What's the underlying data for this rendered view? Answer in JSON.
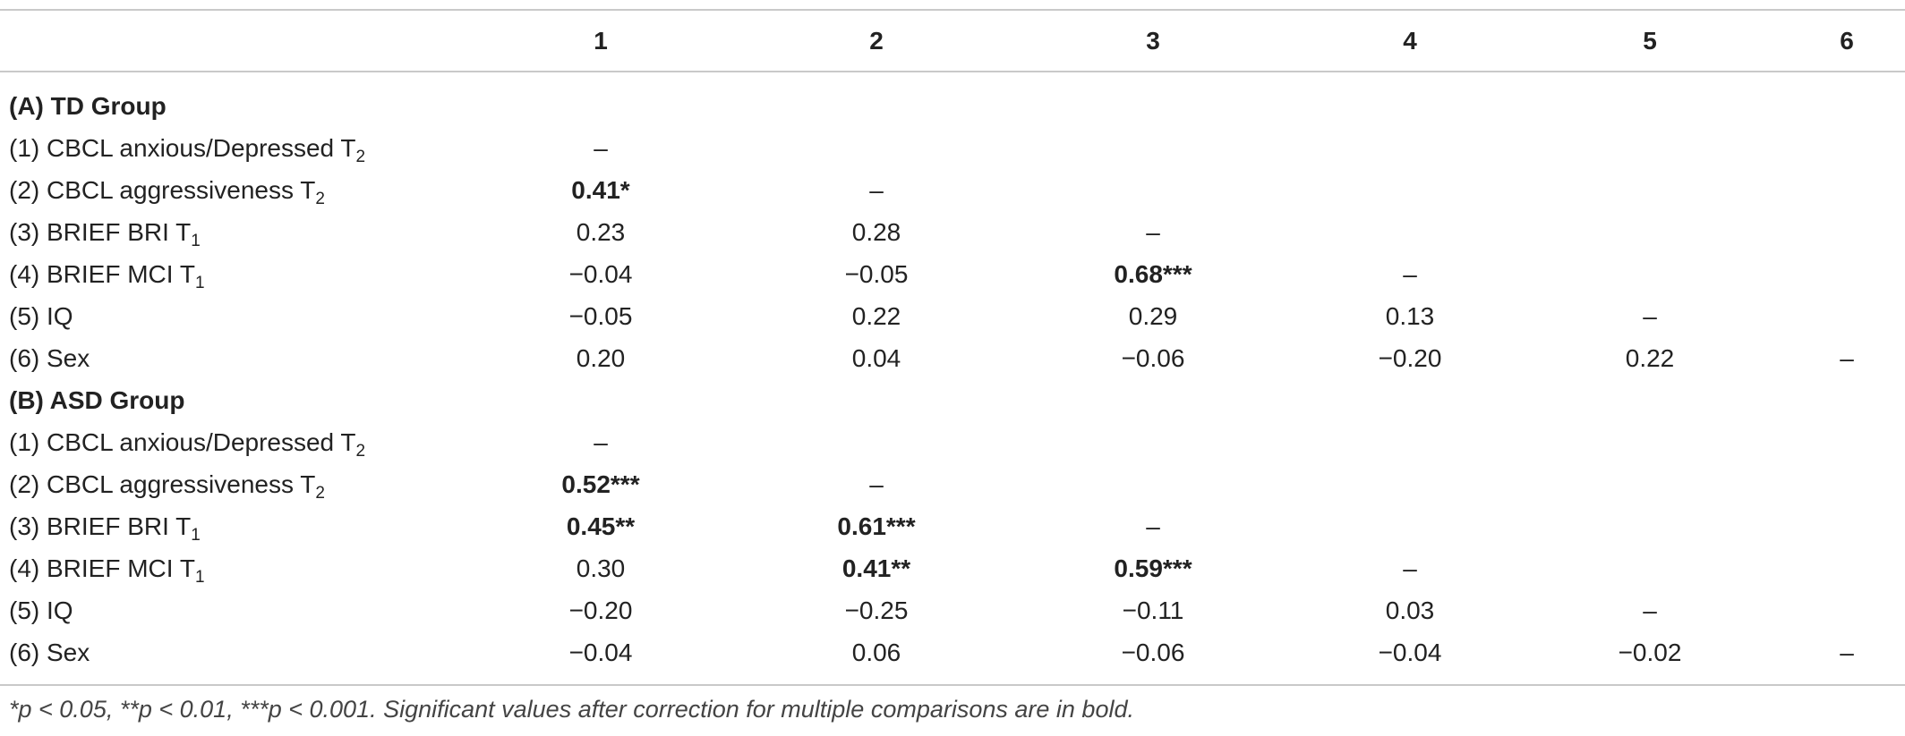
{
  "header": [
    "1",
    "2",
    "3",
    "4",
    "5",
    "6"
  ],
  "groups": [
    {
      "title": "(A) TD Group",
      "rows": [
        {
          "label": "(1) CBCL anxious/Depressed T",
          "sub": "2",
          "cells": [
            "–",
            "",
            "",
            "",
            "",
            ""
          ]
        },
        {
          "label": "(2) CBCL aggressiveness T",
          "sub": "2",
          "cells": [
            "0.41*",
            "–",
            "",
            "",
            "",
            ""
          ]
        },
        {
          "label": "(3) BRIEF BRI T",
          "sub": "1",
          "cells": [
            "0.23",
            "0.28",
            "–",
            "",
            "",
            ""
          ]
        },
        {
          "label": "(4) BRIEF MCI T",
          "sub": "1",
          "cells": [
            "−0.04",
            "−0.05",
            "0.68***",
            "–",
            "",
            ""
          ]
        },
        {
          "label": "(5) IQ",
          "sub": "",
          "cells": [
            "−0.05",
            "0.22",
            "0.29",
            "0.13",
            "–",
            ""
          ]
        },
        {
          "label": "(6) Sex",
          "sub": "",
          "cells": [
            "0.20",
            "0.04",
            "−0.06",
            "−0.20",
            "0.22",
            "–"
          ]
        }
      ]
    },
    {
      "title": "(B) ASD Group",
      "rows": [
        {
          "label": "(1) CBCL anxious/Depressed T",
          "sub": "2",
          "cells": [
            "–",
            "",
            "",
            "",
            "",
            ""
          ]
        },
        {
          "label": "(2) CBCL aggressiveness T",
          "sub": "2",
          "cells": [
            "0.52***",
            "–",
            "",
            "",
            "",
            ""
          ]
        },
        {
          "label": "(3) BRIEF BRI T",
          "sub": "1",
          "cells": [
            "0.45**",
            "0.61***",
            "–",
            "",
            "",
            ""
          ]
        },
        {
          "label": "(4) BRIEF MCI T",
          "sub": "1",
          "cells": [
            "0.30",
            "0.41**",
            "0.59***",
            "–",
            "",
            ""
          ]
        },
        {
          "label": "(5) IQ",
          "sub": "",
          "cells": [
            "−0.20",
            "−0.25",
            "−0.11",
            "0.03",
            "–",
            ""
          ]
        },
        {
          "label": "(6) Sex",
          "sub": "",
          "cells": [
            "−0.04",
            "0.06",
            "−0.06",
            "−0.04",
            "−0.02",
            "–"
          ]
        }
      ]
    }
  ],
  "footnote": "*p < 0.05, **p < 0.01, ***p < 0.001. Significant values after correction for multiple comparisons are in bold."
}
